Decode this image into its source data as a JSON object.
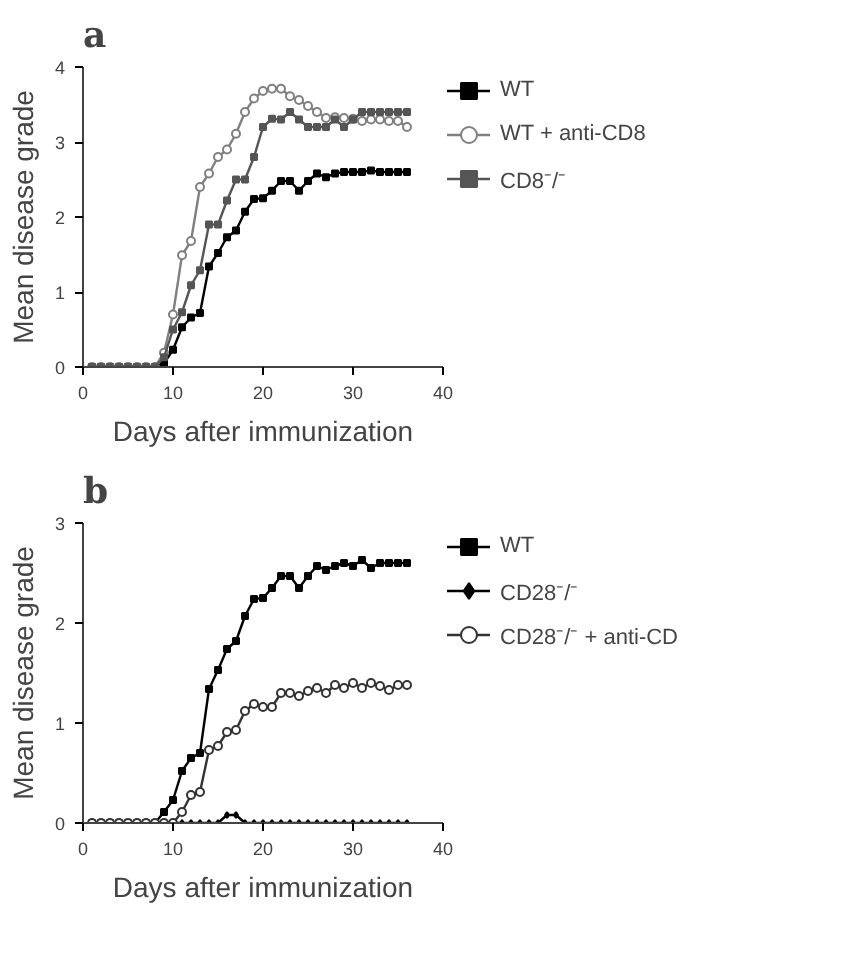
{
  "chart_data": [
    {
      "type": "line",
      "title": "a",
      "xlabel": "Days after immunization",
      "ylabel": "Mean disease grade",
      "x": [
        1,
        2,
        3,
        4,
        5,
        6,
        7,
        8,
        9,
        10,
        11,
        12,
        13,
        14,
        15,
        16,
        17,
        18,
        19,
        20,
        21,
        22,
        23,
        24,
        25,
        26,
        27,
        28,
        29,
        30,
        31,
        32,
        33,
        34,
        35,
        36
      ],
      "series": [
        {
          "name": "WT",
          "color": "#000000",
          "marker": "square",
          "values": [
            0,
            0,
            0,
            0,
            0,
            0,
            0,
            0,
            0.05,
            0.23,
            0.53,
            0.66,
            0.72,
            1.34,
            1.52,
            1.73,
            1.82,
            2.07,
            2.24,
            2.25,
            2.35,
            2.48,
            2.48,
            2.35,
            2.48,
            2.58,
            2.53,
            2.58,
            2.6,
            2.6,
            2.6,
            2.62,
            2.6,
            2.6,
            2.6,
            2.6
          ]
        },
        {
          "name": "WT + anti-CD8",
          "color": "#808080",
          "marker": "circle",
          "values": [
            0,
            0,
            0,
            0,
            0,
            0,
            0,
            0,
            0.19,
            0.7,
            1.49,
            1.68,
            2.4,
            2.58,
            2.8,
            2.9,
            3.11,
            3.4,
            3.58,
            3.68,
            3.71,
            3.71,
            3.61,
            3.56,
            3.48,
            3.4,
            3.32,
            3.33,
            3.32,
            3.31,
            3.28,
            3.3,
            3.3,
            3.28,
            3.28,
            3.2
          ]
        },
        {
          "name": "CD8⁻/⁻",
          "color": "#555555",
          "marker": "square",
          "values": [
            0,
            0,
            0,
            0,
            0,
            0,
            0,
            0,
            0.13,
            0.5,
            0.73,
            1.09,
            1.29,
            1.9,
            1.9,
            2.22,
            2.5,
            2.5,
            2.8,
            3.2,
            3.31,
            3.3,
            3.4,
            3.3,
            3.2,
            3.2,
            3.2,
            3.3,
            3.2,
            3.3,
            3.4,
            3.4,
            3.4,
            3.4,
            3.4,
            3.4
          ]
        }
      ],
      "xlim": [
        0,
        40
      ],
      "ylim": [
        0,
        4
      ],
      "xticks": [
        0,
        10,
        20,
        30,
        40
      ],
      "yticks": [
        0,
        1,
        2,
        3,
        4
      ],
      "legend": "right",
      "grid": false
    },
    {
      "type": "line",
      "title": "b",
      "xlabel": "Days after immunization",
      "ylabel": "Mean disease grade",
      "x": [
        1,
        2,
        3,
        4,
        5,
        6,
        7,
        8,
        9,
        10,
        11,
        12,
        13,
        14,
        15,
        16,
        17,
        18,
        19,
        20,
        21,
        22,
        23,
        24,
        25,
        26,
        27,
        28,
        29,
        30,
        31,
        32,
        33,
        34,
        35,
        36
      ],
      "series": [
        {
          "name": "WT",
          "color": "#000000",
          "marker": "square",
          "values": [
            0,
            0,
            0,
            0,
            0,
            0,
            0,
            0,
            0.11,
            0.23,
            0.52,
            0.65,
            0.7,
            1.34,
            1.53,
            1.74,
            1.82,
            2.07,
            2.24,
            2.25,
            2.35,
            2.47,
            2.47,
            2.35,
            2.47,
            2.57,
            2.53,
            2.57,
            2.6,
            2.57,
            2.63,
            2.55,
            2.6,
            2.6,
            2.6,
            2.6
          ]
        },
        {
          "name": "CD28⁻/⁻",
          "color": "#000000",
          "marker": "diamond",
          "values": [
            0,
            0,
            0,
            0,
            0,
            0,
            0,
            0,
            0,
            0,
            0,
            0,
            0,
            0,
            0,
            0.08,
            0.08,
            0,
            0,
            0,
            0,
            0,
            0,
            0,
            0,
            0,
            0,
            0,
            0,
            0,
            0,
            0,
            0,
            0,
            0,
            0
          ]
        },
        {
          "name": "CD28⁻/⁻ + anti-CD",
          "color": "#333333",
          "marker": "circle",
          "values": [
            0,
            0,
            0,
            0,
            0,
            0,
            0,
            0,
            0,
            0,
            0.11,
            0.28,
            0.31,
            0.73,
            0.77,
            0.91,
            0.93,
            1.12,
            1.19,
            1.16,
            1.16,
            1.3,
            1.3,
            1.27,
            1.32,
            1.35,
            1.3,
            1.38,
            1.35,
            1.4,
            1.35,
            1.4,
            1.37,
            1.33,
            1.38,
            1.38
          ]
        }
      ],
      "xlim": [
        0,
        40
      ],
      "ylim": [
        0,
        3
      ],
      "xticks": [
        0,
        10,
        20,
        30,
        40
      ],
      "yticks": [
        0,
        1,
        2,
        3
      ],
      "legend": "right",
      "grid": false
    }
  ]
}
